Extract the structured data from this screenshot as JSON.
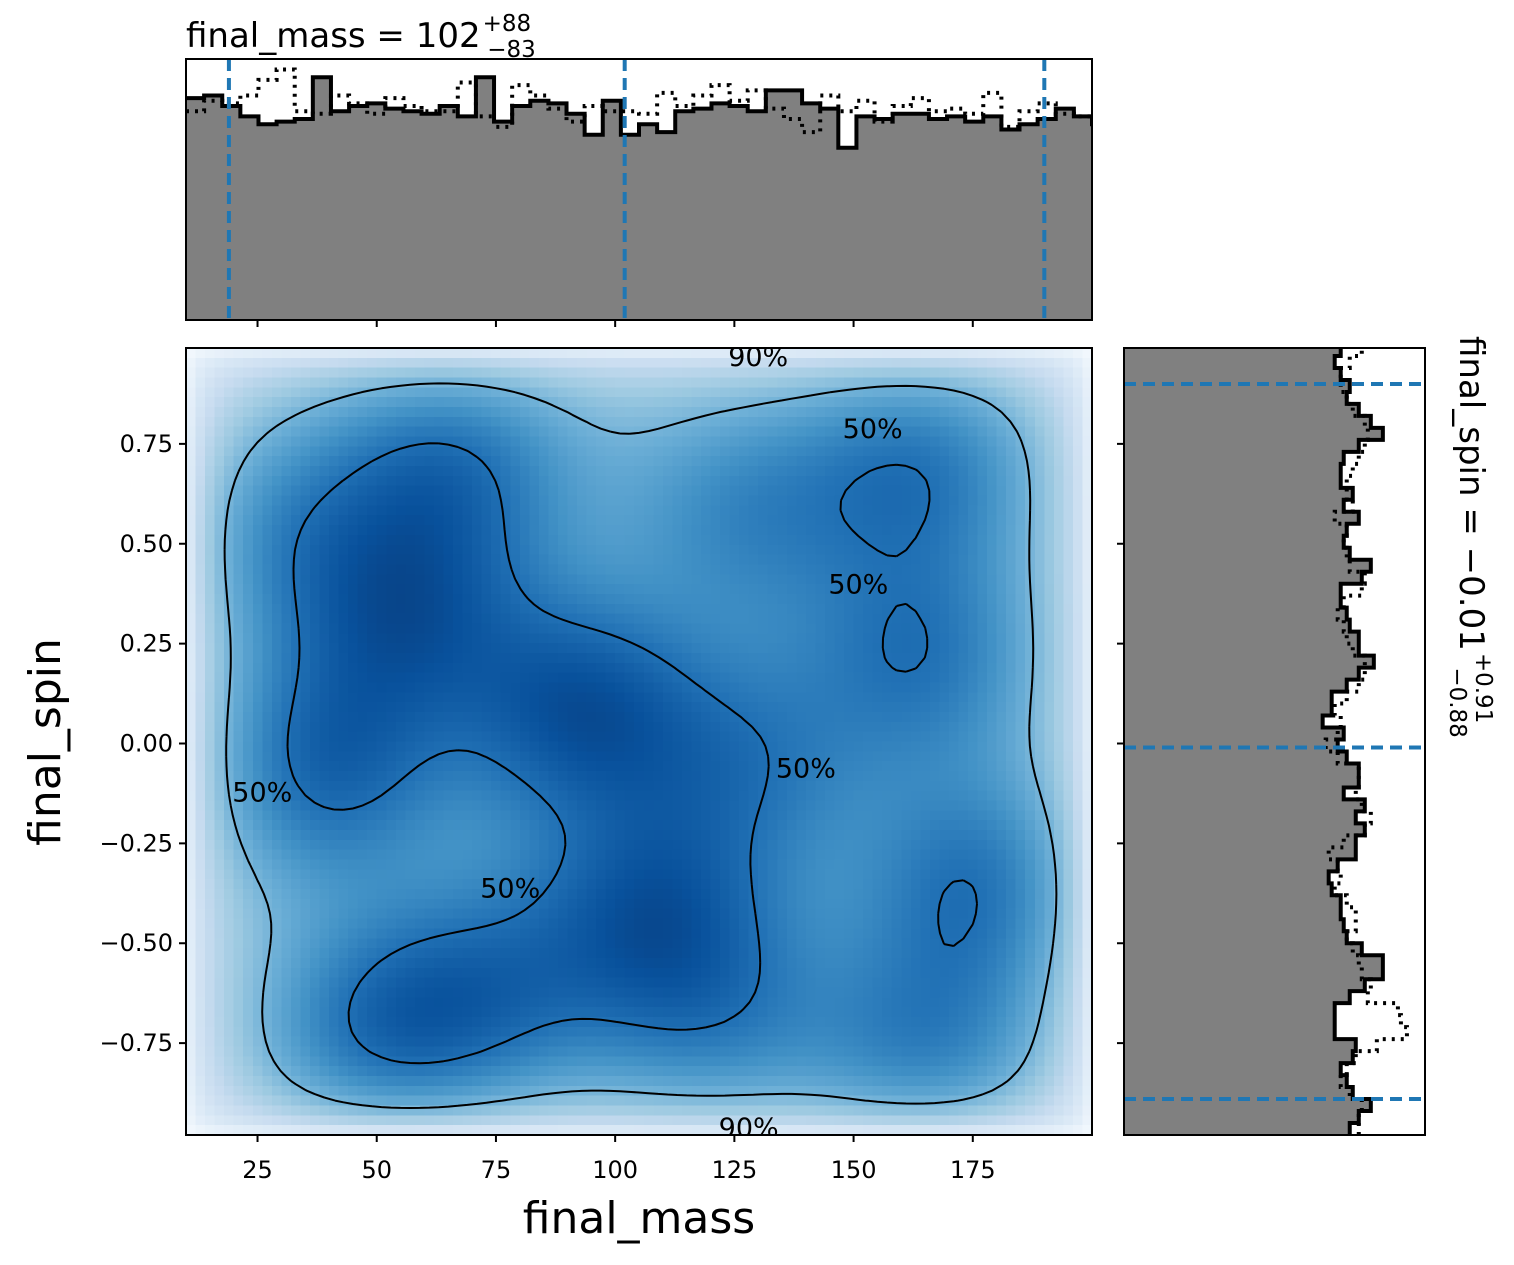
{
  "chart_data": [
    {
      "panel": "marginal-top",
      "type": "step-histogram",
      "title_main": "final_mass = 102",
      "title_plus": "+88",
      "title_minus": "−83",
      "xlim": [
        10,
        200
      ],
      "x_ticks": [
        25,
        50,
        75,
        100,
        125,
        150,
        175
      ],
      "bin_edges_start": 10,
      "bin_width": 3.8,
      "solid_density": [
        0.85,
        0.86,
        0.82,
        0.78,
        0.75,
        0.76,
        0.77,
        0.93,
        0.8,
        0.82,
        0.83,
        0.81,
        0.8,
        0.79,
        0.82,
        0.78,
        0.93,
        0.76,
        0.82,
        0.84,
        0.83,
        0.79,
        0.71,
        0.84,
        0.71,
        0.75,
        0.72,
        0.8,
        0.81,
        0.83,
        0.82,
        0.8,
        0.88,
        0.88,
        0.83,
        0.81,
        0.66,
        0.78,
        0.77,
        0.79,
        0.79,
        0.77,
        0.78,
        0.76,
        0.78,
        0.73,
        0.75,
        0.77,
        0.81,
        0.78,
        0.75,
        0.78,
        0.71,
        0.75,
        0.77,
        0.81,
        0.83,
        0.82,
        0.76,
        0.78,
        0.7,
        0.73,
        0.76,
        0.75,
        0.86,
        0.75,
        0.75,
        0.75,
        0.73,
        0.79,
        0.73,
        0.72,
        0.76,
        0.81,
        0.81,
        0.77,
        0.82,
        0.82,
        0.82,
        0.82,
        0.74,
        0.74,
        0.73,
        0.74,
        0.82,
        0.74,
        0.79,
        0.89,
        0.76,
        0.7,
        0.71,
        0.74,
        0.81,
        0.82,
        0.8,
        0.77,
        0.79,
        0.83,
        0.81,
        0.76,
        0.8,
        0.81,
        0.76,
        0.78,
        0.77,
        0.79,
        0.8,
        0.79,
        0.78,
        0.74,
        0.77,
        0.78,
        0.76,
        0.75,
        0.79,
        0.8,
        0.82,
        0.78,
        0.76,
        0.74
      ],
      "dotted_density": [
        0.8,
        0.84,
        0.83,
        0.86,
        0.92,
        0.96,
        0.8,
        0.79,
        0.86,
        0.83,
        0.79,
        0.85,
        0.82,
        0.8,
        0.8,
        0.91,
        0.78,
        0.74,
        0.9,
        0.86,
        0.81,
        0.76,
        0.82,
        0.8,
        0.8,
        0.79,
        0.87,
        0.82,
        0.86,
        0.9,
        0.84,
        0.88,
        0.81,
        0.77,
        0.72,
        0.86,
        0.8,
        0.84,
        0.76,
        0.82,
        0.85,
        0.8,
        0.81,
        0.79,
        0.87,
        0.74,
        0.8,
        0.83,
        0.79,
        0.78,
        0.79,
        0.76,
        0.79,
        0.84,
        0.82,
        0.81,
        0.78,
        0.77,
        0.74,
        0.79,
        0.82,
        0.82,
        0.8,
        0.82,
        0.79,
        0.86,
        0.8,
        0.77,
        0.8,
        0.76,
        0.74,
        0.78,
        0.81,
        0.86,
        0.86,
        0.85,
        0.8,
        0.81,
        0.82,
        0.81,
        0.76,
        0.75,
        0.78,
        0.81,
        0.83,
        0.84,
        0.79,
        0.83,
        0.81,
        0.74,
        0.79,
        0.77,
        0.85,
        0.78,
        0.76,
        0.77,
        0.83,
        0.8,
        0.83,
        0.78,
        0.81,
        0.76,
        0.78,
        0.76,
        0.82,
        0.84,
        0.78,
        0.75,
        0.79,
        0.76,
        0.81,
        0.82,
        0.79,
        0.77,
        0.74,
        0.78,
        0.79,
        0.75,
        0.77,
        0.8
      ],
      "quantile_lines": [
        19,
        102,
        190
      ],
      "fill_color": "#808080",
      "line_color": "#1f77b4"
    },
    {
      "panel": "joint",
      "type": "heatmap",
      "xlabel": "final_mass",
      "ylabel": "final_spin",
      "xlim": [
        10,
        200
      ],
      "ylim": [
        -0.98,
        0.99
      ],
      "x_ticks": [
        25,
        50,
        75,
        100,
        125,
        150,
        175
      ],
      "y_ticks": [
        -0.75,
        -0.5,
        -0.25,
        0.0,
        0.25,
        0.5,
        0.75
      ],
      "y_tick_labels": [
        "−0.75",
        "−0.50",
        "−0.25",
        "0.00",
        "0.25",
        "0.50",
        "0.75"
      ],
      "colormap": "Blues",
      "density_peaks": [
        {
          "x": 93,
          "y": 0.08,
          "w": 1.0
        },
        {
          "x": 38,
          "y": -0.05,
          "w": 0.9
        },
        {
          "x": 56,
          "y": 0.32,
          "w": 0.85
        },
        {
          "x": 64,
          "y": 0.7,
          "w": 0.8
        },
        {
          "x": 108,
          "y": -0.42,
          "w": 0.85
        },
        {
          "x": 52,
          "y": -0.74,
          "w": 0.85
        },
        {
          "x": 75,
          "y": -0.62,
          "w": 0.6
        },
        {
          "x": 178,
          "y": -0.36,
          "w": 0.8
        },
        {
          "x": 166,
          "y": -0.78,
          "w": 0.7
        },
        {
          "x": 165,
          "y": 0.22,
          "w": 0.7
        },
        {
          "x": 164,
          "y": 0.7,
          "w": 0.75
        },
        {
          "x": 128,
          "y": -0.05,
          "w": 0.55
        },
        {
          "x": 28,
          "y": 0.52,
          "w": 0.55
        },
        {
          "x": 128,
          "y": 0.58,
          "w": 0.5
        },
        {
          "x": 120,
          "y": -0.7,
          "w": 0.55
        }
      ],
      "contour_labels": [
        {
          "text": "90%",
          "x": 130,
          "y": 0.97
        },
        {
          "text": "90%",
          "x": 128,
          "y": -0.96
        },
        {
          "text": "50%",
          "x": 154,
          "y": 0.79
        },
        {
          "text": "50%",
          "x": 151,
          "y": 0.4
        },
        {
          "text": "50%",
          "x": 140,
          "y": -0.06
        },
        {
          "text": "50%",
          "x": 78,
          "y": -0.36
        },
        {
          "text": "50%",
          "x": 26,
          "y": -0.12
        }
      ],
      "contour_line_color": "#000000"
    },
    {
      "panel": "marginal-right",
      "type": "step-histogram",
      "title_main": "final_spin = −0.01",
      "title_plus": "+0.91",
      "title_minus": "−0.88",
      "ylim": [
        -0.98,
        0.99
      ],
      "y_ticks": [
        -0.75,
        -0.5,
        -0.25,
        0.0,
        0.25,
        0.5,
        0.75
      ],
      "bin_edges_start": -0.98,
      "bin_width": 0.03,
      "solid_density": [
        0.75,
        0.78,
        0.82,
        0.76,
        0.74,
        0.72,
        0.76,
        0.77,
        0.7,
        0.7,
        0.7,
        0.75,
        0.8,
        0.86,
        0.86,
        0.79,
        0.74,
        0.73,
        0.72,
        0.72,
        0.69,
        0.68,
        0.71,
        0.77,
        0.77,
        0.8,
        0.77,
        0.8,
        0.73,
        0.78,
        0.78,
        0.74,
        0.71,
        0.73,
        0.66,
        0.69,
        0.69,
        0.74,
        0.78,
        0.83,
        0.78,
        0.78,
        0.75,
        0.74,
        0.72,
        0.72,
        0.79,
        0.82,
        0.75,
        0.73,
        0.74,
        0.78,
        0.73,
        0.76,
        0.72,
        0.72,
        0.73,
        0.78,
        0.86,
        0.82,
        0.78,
        0.74,
        0.75,
        0.72,
        0.7,
        0.72,
        0.78,
        0.8,
        0.72,
        0.7,
        0.76,
        0.78,
        0.74,
        0.76,
        0.82,
        0.84,
        0.82,
        0.77,
        0.73,
        0.74,
        0.73,
        0.74,
        0.79,
        0.73,
        0.71,
        0.76,
        0.78,
        0.77,
        0.78,
        0.79,
        0.79,
        0.77,
        0.75,
        0.76,
        0.76,
        0.83,
        0.79,
        0.82,
        0.77,
        0.8,
        0.79,
        0.76,
        0.74,
        0.75,
        0.76
      ],
      "dotted_density": [
        0.78,
        0.78,
        0.79,
        0.75,
        0.72,
        0.74,
        0.77,
        0.84,
        0.94,
        0.92,
        0.91,
        0.81,
        0.82,
        0.79,
        0.78,
        0.76,
        0.74,
        0.77,
        0.77,
        0.74,
        0.7,
        0.72,
        0.71,
        0.68,
        0.73,
        0.8,
        0.82,
        0.79,
        0.77,
        0.78,
        0.78,
        0.71,
        0.67,
        0.71,
        0.72,
        0.7,
        0.74,
        0.78,
        0.8,
        0.8,
        0.76,
        0.74,
        0.73,
        0.71,
        0.73,
        0.79,
        0.8,
        0.75,
        0.74,
        0.73,
        0.74,
        0.7,
        0.76,
        0.74,
        0.74,
        0.76,
        0.78,
        0.8,
        0.81,
        0.8,
        0.76,
        0.74,
        0.72,
        0.72,
        0.75,
        0.79,
        0.78,
        0.73,
        0.74,
        0.76,
        0.77,
        0.74,
        0.76,
        0.76,
        0.79,
        0.81,
        0.79,
        0.77,
        0.74,
        0.73,
        0.74,
        0.7,
        0.8,
        0.77,
        0.71,
        0.76,
        0.79,
        0.78,
        0.78,
        0.78,
        0.8,
        0.81,
        0.75,
        0.77,
        0.77,
        0.79,
        0.79,
        0.78,
        0.78,
        0.78,
        0.8,
        0.79,
        0.77,
        0.75,
        0.77
      ],
      "quantile_lines": [
        -0.89,
        -0.01,
        0.9
      ],
      "fill_color": "#808080",
      "line_color": "#1f77b4"
    }
  ]
}
